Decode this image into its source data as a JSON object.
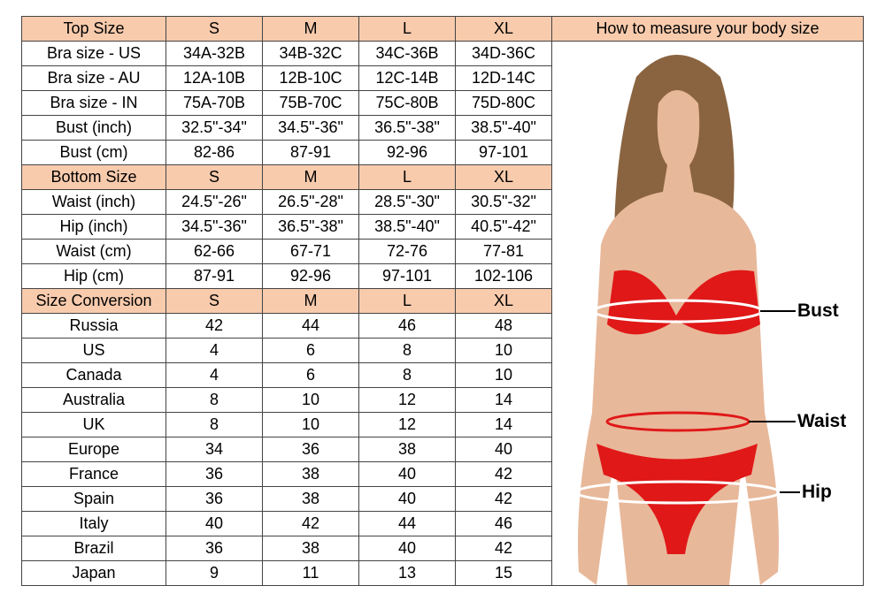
{
  "sections": [
    {
      "header": [
        "Top Size",
        "S",
        "M",
        "L",
        "XL"
      ],
      "rows": [
        [
          "Bra size - US",
          "34A-32B",
          "34B-32C",
          "34C-36B",
          "34D-36C"
        ],
        [
          "Bra size - AU",
          "12A-10B",
          "12B-10C",
          "12C-14B",
          "12D-14C"
        ],
        [
          "Bra size - IN",
          "75A-70B",
          "75B-70C",
          "75C-80B",
          "75D-80C"
        ],
        [
          "Bust (inch)",
          "32.5\"-34\"",
          "34.5\"-36\"",
          "36.5\"-38\"",
          "38.5\"-40\""
        ],
        [
          "Bust (cm)",
          "82-86",
          "87-91",
          "92-96",
          "97-101"
        ]
      ]
    },
    {
      "header": [
        "Bottom Size",
        "S",
        "M",
        "L",
        "XL"
      ],
      "rows": [
        [
          "Waist (inch)",
          "24.5\"-26\"",
          "26.5\"-28\"",
          "28.5\"-30\"",
          "30.5\"-32\""
        ],
        [
          "Hip (inch)",
          "34.5\"-36\"",
          "36.5\"-38\"",
          "38.5\"-40\"",
          "40.5\"-42\""
        ],
        [
          "Waist (cm)",
          "62-66",
          "67-71",
          "72-76",
          "77-81"
        ],
        [
          "Hip (cm)",
          "87-91",
          "92-96",
          "97-101",
          "102-106"
        ]
      ]
    },
    {
      "header": [
        "Size Conversion",
        "S",
        "M",
        "L",
        "XL"
      ],
      "rows": [
        [
          "Russia",
          "42",
          "44",
          "46",
          "48"
        ],
        [
          "US",
          "4",
          "6",
          "8",
          "10"
        ],
        [
          "Canada",
          "4",
          "6",
          "8",
          "10"
        ],
        [
          "Australia",
          "8",
          "10",
          "12",
          "14"
        ],
        [
          "UK",
          "8",
          "10",
          "12",
          "14"
        ],
        [
          "Europe",
          "34",
          "36",
          "38",
          "40"
        ],
        [
          "France",
          "36",
          "38",
          "40",
          "42"
        ],
        [
          "Spain",
          "36",
          "38",
          "40",
          "42"
        ],
        [
          "Italy",
          "40",
          "42",
          "44",
          "46"
        ],
        [
          "Brazil",
          "36",
          "38",
          "40",
          "42"
        ],
        [
          "Japan",
          "9",
          "11",
          "13",
          "15"
        ]
      ]
    }
  ],
  "panel": {
    "title": "How to measure your body size",
    "labels": {
      "bust": "Bust",
      "waist": "Waist",
      "hip": "Hip"
    }
  },
  "colors": {
    "header_bg": "#f8cbad",
    "bikini": "#e01818"
  }
}
